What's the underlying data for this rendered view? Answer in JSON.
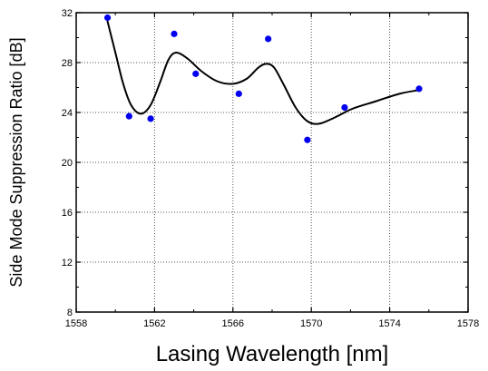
{
  "chart_data": {
    "type": "scatter",
    "title": "",
    "xlabel": "Lasing Wavelength [nm]",
    "ylabel": "Side Mode Suppression Ratio [dB]",
    "xlim": [
      1558,
      1578
    ],
    "ylim": [
      8,
      32
    ],
    "xticks": [
      1558,
      1562,
      1566,
      1570,
      1574,
      1578
    ],
    "yticks": [
      8,
      12,
      16,
      20,
      24,
      28,
      32
    ],
    "grid": true,
    "grid_style": "dotted",
    "legend": "none",
    "series": [
      {
        "type": "scatter",
        "color": "#0000ee",
        "points": [
          {
            "x": 1559.6,
            "y": 31.6
          },
          {
            "x": 1560.7,
            "y": 23.7
          },
          {
            "x": 1561.8,
            "y": 23.5
          },
          {
            "x": 1563.0,
            "y": 30.3
          },
          {
            "x": 1564.1,
            "y": 27.1
          },
          {
            "x": 1566.3,
            "y": 25.5
          },
          {
            "x": 1567.8,
            "y": 29.9
          },
          {
            "x": 1569.8,
            "y": 21.8
          },
          {
            "x": 1571.7,
            "y": 24.4
          },
          {
            "x": 1575.5,
            "y": 25.9
          }
        ]
      },
      {
        "type": "line",
        "smooth": true,
        "color": "#000000",
        "points": [
          {
            "x": 1559.6,
            "y": 31.3
          },
          {
            "x": 1560.0,
            "y": 28.8
          },
          {
            "x": 1560.4,
            "y": 26.3
          },
          {
            "x": 1560.8,
            "y": 24.6
          },
          {
            "x": 1561.3,
            "y": 23.9
          },
          {
            "x": 1561.8,
            "y": 24.6
          },
          {
            "x": 1562.3,
            "y": 26.5
          },
          {
            "x": 1562.7,
            "y": 28.2
          },
          {
            "x": 1563.1,
            "y": 28.8
          },
          {
            "x": 1563.7,
            "y": 28.3
          },
          {
            "x": 1564.4,
            "y": 27.3
          },
          {
            "x": 1565.2,
            "y": 26.5
          },
          {
            "x": 1566.0,
            "y": 26.3
          },
          {
            "x": 1566.7,
            "y": 26.7
          },
          {
            "x": 1567.3,
            "y": 27.6
          },
          {
            "x": 1567.7,
            "y": 27.9
          },
          {
            "x": 1568.1,
            "y": 27.6
          },
          {
            "x": 1568.6,
            "y": 26.2
          },
          {
            "x": 1569.2,
            "y": 24.4
          },
          {
            "x": 1569.8,
            "y": 23.3
          },
          {
            "x": 1570.4,
            "y": 23.1
          },
          {
            "x": 1571.2,
            "y": 23.6
          },
          {
            "x": 1572.1,
            "y": 24.3
          },
          {
            "x": 1573.3,
            "y": 24.9
          },
          {
            "x": 1574.5,
            "y": 25.5
          },
          {
            "x": 1575.5,
            "y": 25.8
          }
        ]
      }
    ]
  }
}
